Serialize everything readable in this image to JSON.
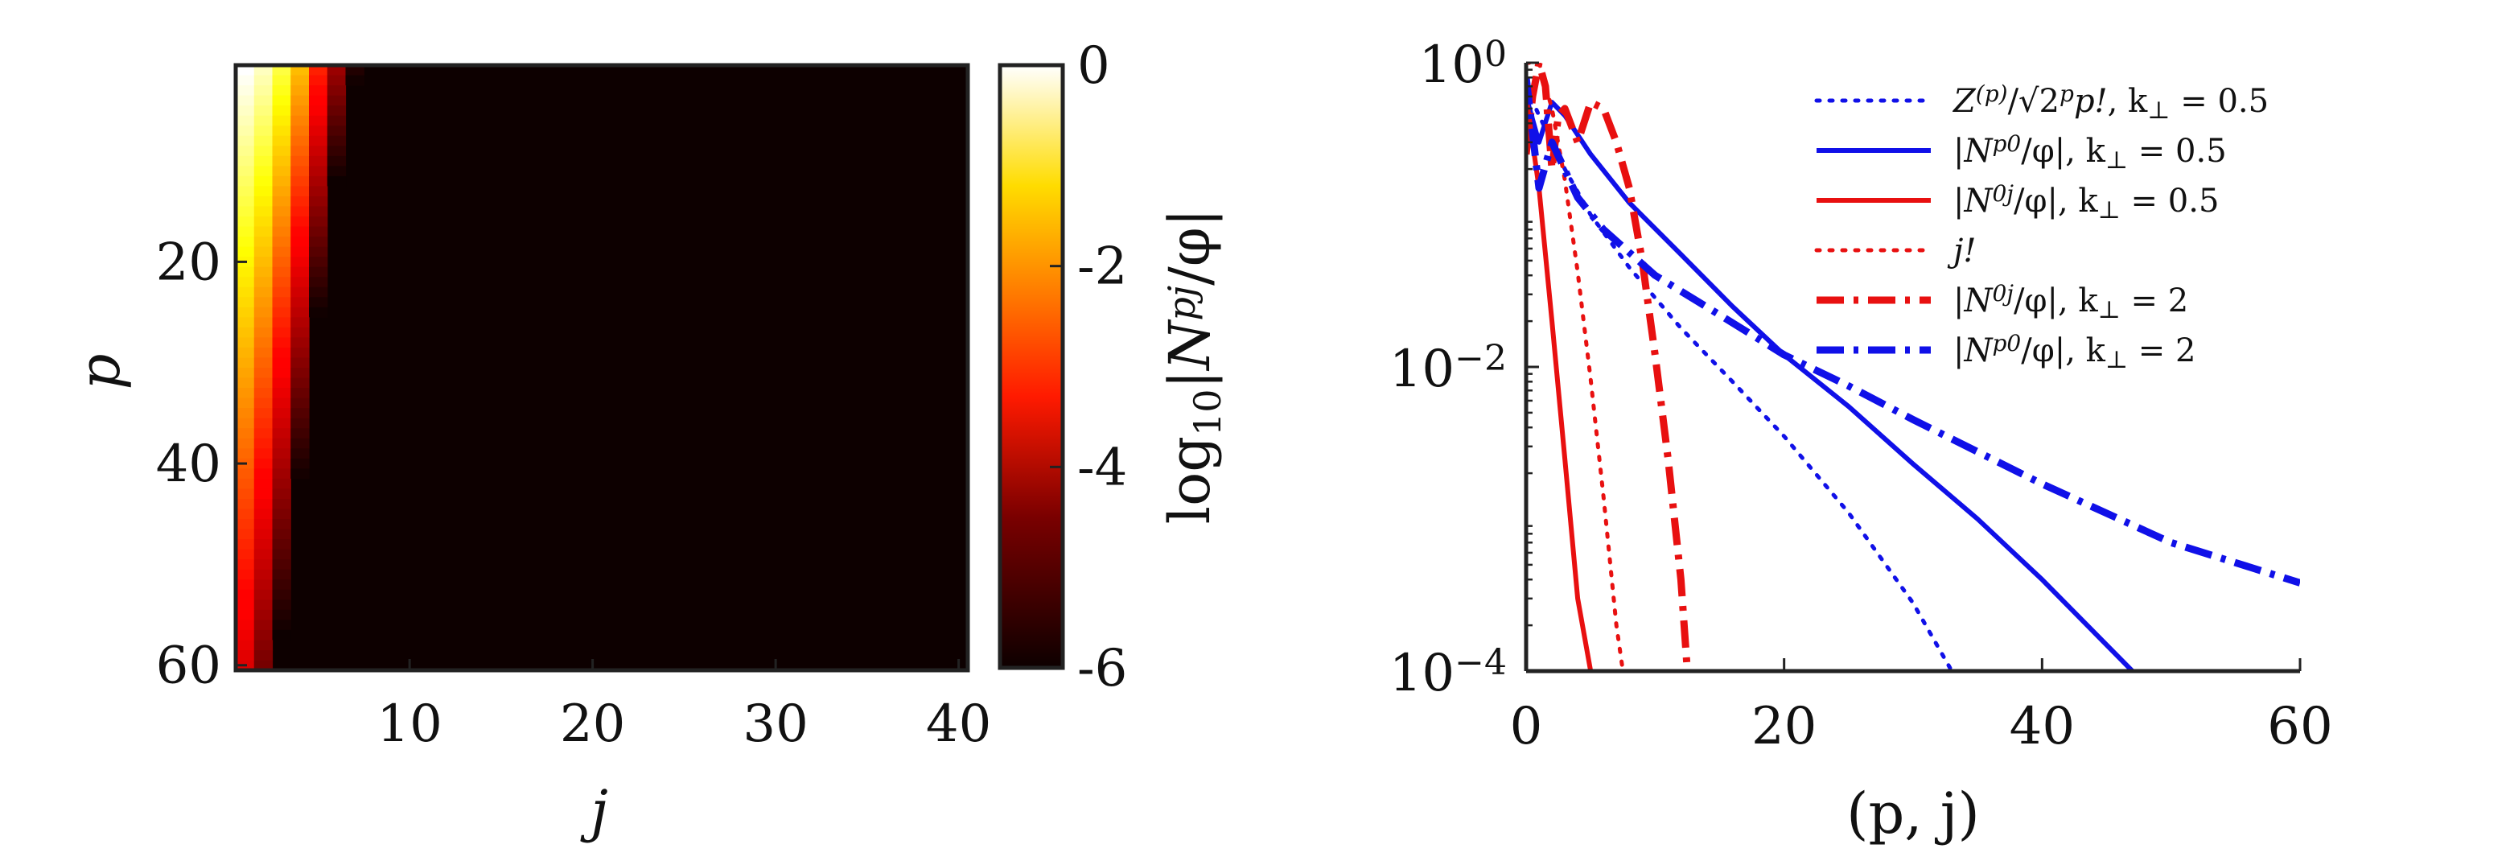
{
  "chart_data": [
    {
      "type": "heatmap",
      "xlabel": "j",
      "ylabel": "p",
      "xlim": [
        1,
        41
      ],
      "ylim": [
        1,
        61
      ],
      "y_reversed": true,
      "x_ticks": [
        10,
        20,
        30,
        40
      ],
      "y_ticks": [
        20,
        40,
        60
      ],
      "colormap": "hot",
      "colorbar": {
        "label": "log₁₀|Nᵖʲ/φ|",
        "label_parts": [
          "log",
          "10",
          "|N",
          "pj",
          "/φ|"
        ],
        "range": [
          -6,
          0
        ],
        "ticks": [
          0,
          -2,
          -4,
          -6
        ],
        "tick_labels": [
          "0",
          "-2",
          "-4",
          "-6"
        ]
      },
      "row_profile_note": "log10 value per column j decays with j; columns 1-6 nonzero fade with p",
      "column_values_at_p1": [
        0,
        -0.3,
        -0.9,
        -1.8,
        -3.2,
        -4.6,
        -5.8
      ]
    },
    {
      "type": "line",
      "xlabel": "(p, j)",
      "ylabel": "",
      "xlim": [
        0,
        60
      ],
      "ylim": [
        0.0001,
        1
      ],
      "yscale": "log",
      "x_ticks": [
        0,
        20,
        40,
        60
      ],
      "y_tick_labels": [
        {
          "base": "10",
          "exp": "0",
          "value": 1
        },
        {
          "base": "10",
          "exp": "−2",
          "value": 0.01
        },
        {
          "base": "10",
          "exp": "−4",
          "value": 0.0001
        }
      ],
      "legend_position": "top-right",
      "colors": {
        "blue": "#1010e8",
        "red": "#e81010"
      },
      "series": [
        {
          "name": "Z⁽ᵖ⁾/√(2ᵖp!), k⊥ = 0.5",
          "label_parts": [
            "Z",
            "(p)",
            "/√",
            "2",
            "p",
            "p!",
            ", k",
            "⊥",
            " = 0.5"
          ],
          "color": "blue",
          "style": "dotted",
          "x": [
            0,
            1,
            2,
            3,
            5,
            8,
            12,
            16,
            20,
            25,
            30,
            33
          ],
          "y": [
            0.7,
            0.45,
            0.3,
            0.2,
            0.1,
            0.045,
            0.018,
            0.008,
            0.0035,
            0.0011,
            0.00028,
            0.0001
          ]
        },
        {
          "name": "|Nᵖ⁰/φ|, k⊥ = 0.5",
          "label_parts": [
            "|N",
            "p0",
            "/φ|, k",
            "⊥",
            " = 0.5"
          ],
          "color": "blue",
          "style": "solid",
          "x": [
            0,
            1,
            2,
            3,
            5,
            8,
            12,
            16,
            20,
            25,
            30,
            35,
            40,
            47
          ],
          "y": [
            0.6,
            0.3,
            0.55,
            0.45,
            0.25,
            0.12,
            0.055,
            0.025,
            0.012,
            0.0055,
            0.0023,
            0.001,
            0.0004,
            0.0001
          ]
        },
        {
          "name": "|N⁰ʲ/φ|, k⊥ = 0.5",
          "label_parts": [
            "|N",
            "0j",
            "/φ|, k",
            "⊥",
            " = 0.5"
          ],
          "color": "red",
          "style": "solid",
          "x": [
            0,
            1,
            2,
            3,
            4,
            5
          ],
          "y": [
            0.6,
            0.15,
            0.02,
            0.0025,
            0.0003,
            0.0001
          ]
        },
        {
          "name": "j!",
          "label_parts": [
            "j!"
          ],
          "color": "red",
          "style": "dotted",
          "x": [
            0,
            1,
            2,
            3,
            4,
            5,
            6,
            7,
            7.5
          ],
          "y": [
            1,
            1,
            0.5,
            0.17,
            0.042,
            0.0083,
            0.0014,
            0.0002,
            0.0001
          ]
        },
        {
          "name": "|N⁰ʲ/φ|, k⊥ = 2",
          "label_parts": [
            "|N",
            "0j",
            "/φ|, k",
            "⊥",
            " = 2"
          ],
          "color": "red",
          "style": "dashdot",
          "x": [
            0,
            0.5,
            1,
            1.5,
            2,
            2.5,
            3,
            4,
            5,
            6,
            7,
            8,
            9,
            10,
            11,
            12,
            12.5
          ],
          "y": [
            0.25,
            0.6,
            1,
            0.7,
            0.2,
            0.45,
            0.5,
            0.3,
            0.55,
            0.5,
            0.3,
            0.15,
            0.05,
            0.012,
            0.0025,
            0.0004,
            0.0001
          ]
        },
        {
          "name": "|Nᵖ⁰/φ|, k⊥ = 2",
          "label_parts": [
            "|N",
            "p0",
            "/φ|, k",
            "⊥",
            " = 2"
          ],
          "color": "blue",
          "style": "dashdot",
          "x": [
            0,
            1,
            2,
            4,
            6,
            10,
            15,
            20,
            25,
            30,
            40,
            50,
            60
          ],
          "y": [
            0.8,
            0.15,
            0.3,
            0.13,
            0.08,
            0.04,
            0.022,
            0.012,
            0.0075,
            0.0045,
            0.0017,
            0.0007,
            0.00038
          ]
        }
      ]
    }
  ]
}
